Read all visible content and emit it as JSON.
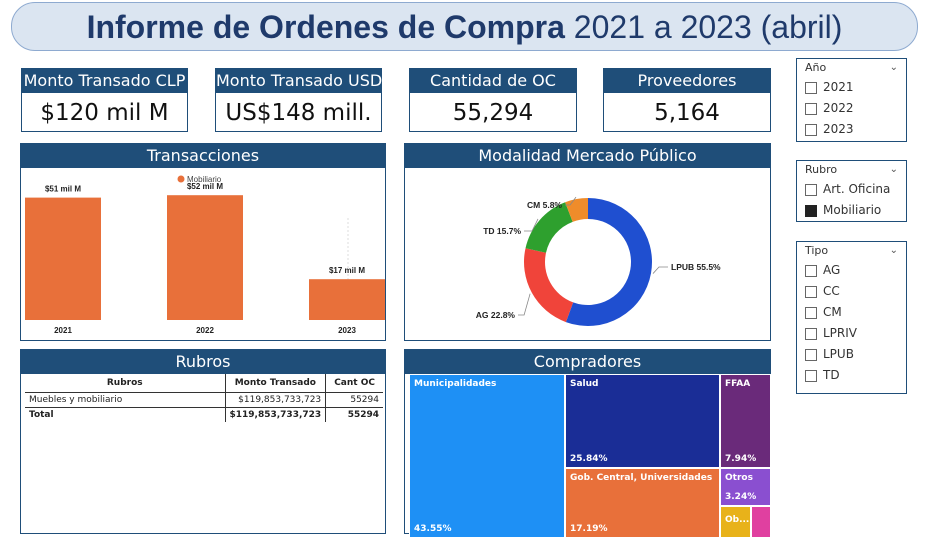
{
  "title": {
    "bold": "Informe de Ordenes de Compra",
    "rest": "2021 a 2023 (abril)"
  },
  "kpis": [
    {
      "label": "Monto Transado CLP",
      "value": "$120 mil M"
    },
    {
      "label": "Monto Transado USD",
      "value": "US$148 mill."
    },
    {
      "label": "Cantidad de OC",
      "value": "55,294"
    },
    {
      "label": "Proveedores",
      "value": "5,164"
    }
  ],
  "transacciones": {
    "title": "Transacciones",
    "chart_data": {
      "type": "bar",
      "legend": [
        {
          "name": "Mobiliario",
          "color": "#e8703a"
        }
      ],
      "categories": [
        "2021",
        "2022",
        "2023"
      ],
      "values": [
        51,
        52,
        17
      ],
      "data_labels": [
        "$51 mil M",
        "$52 mil M",
        "$17 mil M"
      ],
      "ylim": [
        0,
        60
      ],
      "bar_color": "#e8703a"
    }
  },
  "modalidad": {
    "title": "Modalidad Mercado Público",
    "chart_data": {
      "type": "pie",
      "labels": [
        "LPUB",
        "AG",
        "TD",
        "CM"
      ],
      "values": [
        55.5,
        22.8,
        15.7,
        5.8
      ],
      "slice_labels": [
        "LPUB 55.5%",
        "AG 22.8%",
        "TD 15.7%",
        "CM 5.8%"
      ],
      "colors": [
        "#1f4fd0",
        "#f0443a",
        "#2ea02e",
        "#ef8c2a"
      ]
    }
  },
  "rubros": {
    "title": "Rubros",
    "columns": [
      "Rubros",
      "Monto Transado",
      "Cant OC"
    ],
    "rows": [
      {
        "name": "Muebles y mobiliario",
        "monto": "$119,853,733,723",
        "cant": "55294"
      }
    ],
    "total": {
      "name": "Total",
      "monto": "$119,853,733,723",
      "cant": "55294"
    }
  },
  "compradores": {
    "title": "Compradores",
    "chart_data": {
      "type": "treemap",
      "items": [
        {
          "name": "Municipalidades",
          "pct": "43.55%",
          "color": "#1e90f5"
        },
        {
          "name": "Salud",
          "pct": "25.84%",
          "color": "#1a2d96"
        },
        {
          "name": "Gob. Central, Universidades",
          "pct": "17.19%",
          "color": "#e8703a"
        },
        {
          "name": "FFAA",
          "pct": "7.94%",
          "color": "#6a2a7a"
        },
        {
          "name": "Otros",
          "pct": "3.24%",
          "color": "#8a4fd0"
        },
        {
          "name": "Ob...",
          "pct": "",
          "color": "#e8b21a"
        },
        {
          "name": "",
          "pct": "",
          "color": "#e040a0"
        }
      ]
    }
  },
  "slicers": {
    "anio": {
      "title": "Año",
      "items": [
        {
          "label": "2021",
          "checked": false
        },
        {
          "label": "2022",
          "checked": false
        },
        {
          "label": "2023",
          "checked": false
        }
      ]
    },
    "rubro": {
      "title": "Rubro",
      "items": [
        {
          "label": "Art. Oficina",
          "checked": false
        },
        {
          "label": "Mobiliario",
          "checked": true
        }
      ]
    },
    "tipo": {
      "title": "Tipo",
      "items": [
        {
          "label": "AG",
          "checked": false
        },
        {
          "label": "CC",
          "checked": false
        },
        {
          "label": "CM",
          "checked": false
        },
        {
          "label": "LPRIV",
          "checked": false
        },
        {
          "label": "LPUB",
          "checked": false
        },
        {
          "label": "TD",
          "checked": false
        }
      ]
    }
  },
  "icons": {
    "chevron": "chevron-down-icon"
  }
}
